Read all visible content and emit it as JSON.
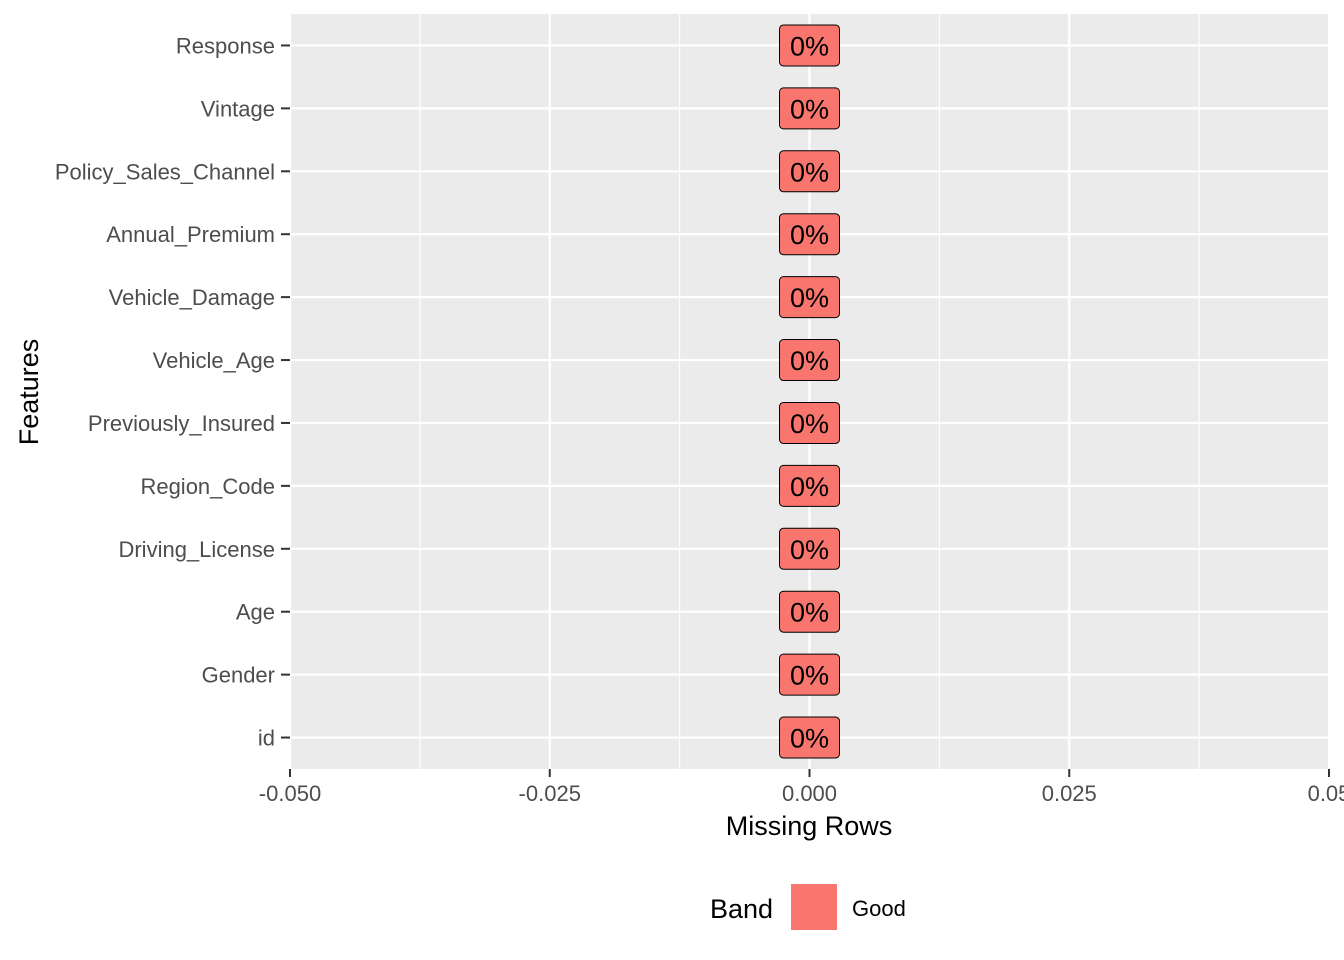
{
  "chart_data": {
    "type": "bar",
    "orientation": "horizontal",
    "categories": [
      "id",
      "Gender",
      "Age",
      "Driving_License",
      "Region_Code",
      "Previously_Insured",
      "Vehicle_Age",
      "Vehicle_Damage",
      "Annual_Premium",
      "Policy_Sales_Channel",
      "Vintage",
      "Response"
    ],
    "values": [
      0,
      0,
      0,
      0,
      0,
      0,
      0,
      0,
      0,
      0,
      0,
      0
    ],
    "data_labels": [
      "0%",
      "0%",
      "0%",
      "0%",
      "0%",
      "0%",
      "0%",
      "0%",
      "0%",
      "0%",
      "0%",
      "0%"
    ],
    "xlabel": "Missing Rows",
    "ylabel": "Features",
    "xlim": [
      -0.05,
      0.05
    ],
    "x_ticks": [
      -0.05,
      -0.025,
      0,
      0.025,
      0.05
    ],
    "x_tick_labels": [
      "-0.050",
      "-0.025",
      "0.000",
      "0.025",
      "0.05"
    ],
    "grid": true,
    "legend": {
      "title": "Band",
      "position": "bottom",
      "entries": [
        {
          "label": "Good",
          "color": "#F8766D"
        }
      ]
    },
    "colors": {
      "panel_background": "#EBEBEB",
      "grid_line": "#FFFFFF",
      "bar_fill": "#F8766D",
      "tick_text": "#4D4D4D",
      "tick_mark": "#333333"
    }
  }
}
